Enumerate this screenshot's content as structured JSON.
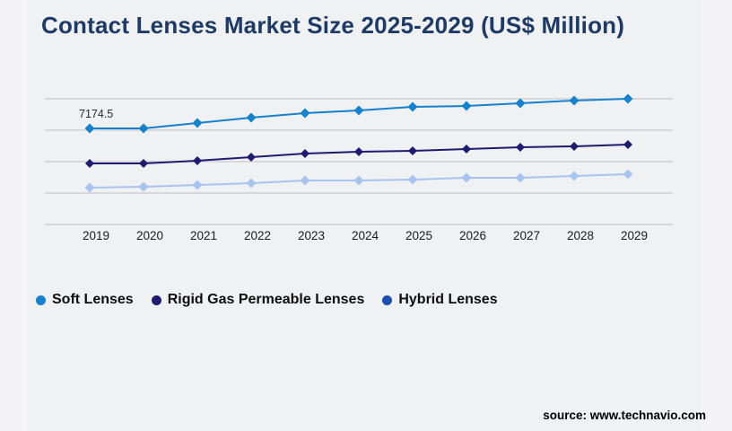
{
  "page": {
    "title": "Contact Lenses Market Size 2025-2029 (US$ Million)",
    "source": "source: www.technavio.com"
  },
  "colors": {
    "background": "#f0f1f3",
    "margin_background": "#f4f4f7",
    "title": "#1e3a66",
    "gridline": "#c9c9ce",
    "soft_lenses": "#1682cd",
    "rigid_lenses": "#1e1b72",
    "hybrid_lenses_line": "#a7c4f0",
    "hybrid_lenses_legend_dot": "#1c4fb2",
    "tick_label": "#1c1c1c"
  },
  "legend": {
    "items": [
      {
        "label": "Soft Lenses",
        "color": "#1682cd"
      },
      {
        "label": "Rigid Gas Permeable Lenses",
        "color": "#1e1b72"
      },
      {
        "label": "Hybrid Lenses",
        "color": "#1c4fb2"
      }
    ]
  },
  "chart_data": {
    "type": "line",
    "title": "Contact Lenses Market Size 2025-2029 (US$ Million)",
    "categories": [
      "2019",
      "2020",
      "2021",
      "2022",
      "2023",
      "2024",
      "2025",
      "2026",
      "2027",
      "2028",
      "2029"
    ],
    "series": [
      {
        "name": "Soft Lenses",
        "color": "#1682cd",
        "marker": "diamond",
        "marker_size": 11,
        "values": [
          7174.5,
          7175,
          7575,
          7980,
          8315,
          8515,
          8785,
          8850,
          9050,
          9255,
          9390
        ]
      },
      {
        "name": "Rigid Gas Permeable Lenses",
        "color": "#1e1b72",
        "marker": "diamond",
        "marker_size": 10,
        "values": [
          4560,
          4560,
          4760,
          5030,
          5300,
          5430,
          5500,
          5630,
          5765,
          5835,
          5965
        ]
      },
      {
        "name": "Hybrid Lenses",
        "color": "#a7c4f0",
        "marker": "diamond",
        "marker_size": 11,
        "values": [
          2750,
          2815,
          2950,
          3085,
          3285,
          3285,
          3355,
          3485,
          3485,
          3620,
          3755
        ]
      }
    ],
    "data_label": {
      "series": "Soft Lenses",
      "category": "2019",
      "text": "7174.5"
    },
    "xlabel": "",
    "ylabel": "",
    "ylim": [
      0,
      9700
    ],
    "y_axis_visible": false,
    "grid": "horizontal",
    "legend_position": "bottom-left"
  }
}
